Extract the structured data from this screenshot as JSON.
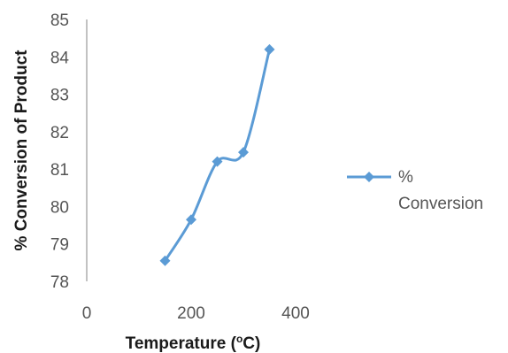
{
  "chart_data": {
    "type": "line",
    "title": "",
    "xlabel": "Temperature (",
    "xlabel_sup": "o",
    "xlabel_unit": "C)",
    "ylabel": "% Conversion of Product",
    "xlim": [
      0,
      400
    ],
    "ylim": [
      78,
      85
    ],
    "xticks": [
      "0",
      "200",
      "400"
    ],
    "yticks": [
      "78",
      "79",
      "80",
      "81",
      "82",
      "83",
      "84",
      "85"
    ],
    "grid": false,
    "legend": {
      "position": "right",
      "label_line1": "%",
      "label_line2": "Conversion"
    },
    "series": [
      {
        "name": "% Conversion",
        "color": "#5b9bd5",
        "marker": "diamond",
        "smooth": true,
        "x": [
          150,
          200,
          250,
          300,
          350
        ],
        "y": [
          78.55,
          79.65,
          81.2,
          81.45,
          84.2
        ]
      }
    ]
  }
}
